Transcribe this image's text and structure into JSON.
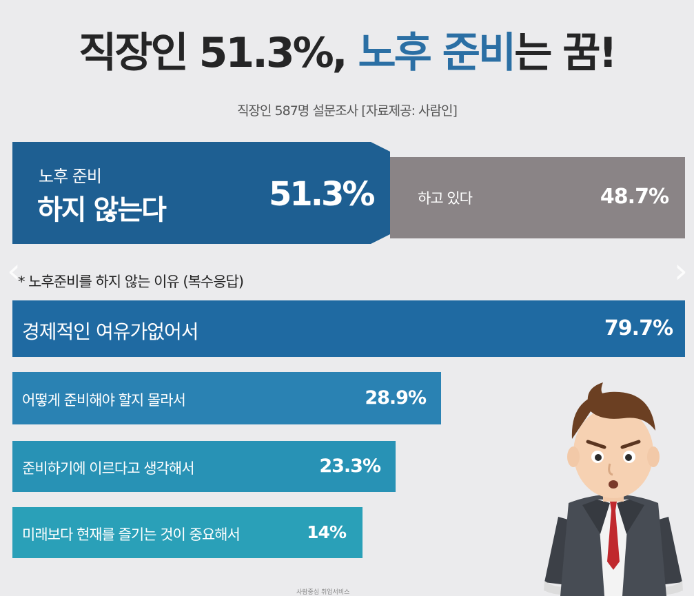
{
  "header": {
    "title_part1": "직장인 51.3%, ",
    "title_part2_blue": "노후 준비",
    "title_part3": "는 꿈!",
    "subtitle": "직장인 587명 설문조사  [자료제공: 사람인]"
  },
  "split": {
    "no_line1": "노후 준비",
    "no_line2": "하지 않는다",
    "no_value": "51.3%",
    "yes_label": "하고 있다",
    "yes_value": "48.7%"
  },
  "reasons_title": "* 노후준비를 하지 않는 이유 (복수응답)",
  "nav": {
    "prev": "‹",
    "next": "›"
  },
  "footer": {
    "logo_text": "사람중심 취업서비스"
  },
  "colors": {
    "split_no": "#1e5f92",
    "split_yes": "#8a8486",
    "background": "#ebebed"
  },
  "chart_data": [
    {
      "type": "bar",
      "categories": [
        "노후 준비 하지 않는다",
        "하고 있다"
      ],
      "values": [
        51.3,
        48.7
      ],
      "title": "직장인 51.3%, 노후 준비는 꿈!"
    },
    {
      "type": "bar",
      "orientation": "horizontal",
      "title": "* 노후준비를 하지 않는 이유 (복수응답)",
      "categories": [
        "경제적인 여유가없어서",
        "어떻게 준비해야 할지 몰라서",
        "준비하기에 이르다고 생각해서",
        "미래보다 현재를 즐기는 것이 중요해서"
      ],
      "values": [
        79.7,
        28.9,
        23.3,
        14
      ],
      "value_labels": [
        "79.7%",
        "28.9%",
        "23.3%",
        "14%"
      ],
      "colors": [
        "#1f6aa2",
        "#2a82b3",
        "#2892b5",
        "#2aa0b8"
      ]
    }
  ]
}
